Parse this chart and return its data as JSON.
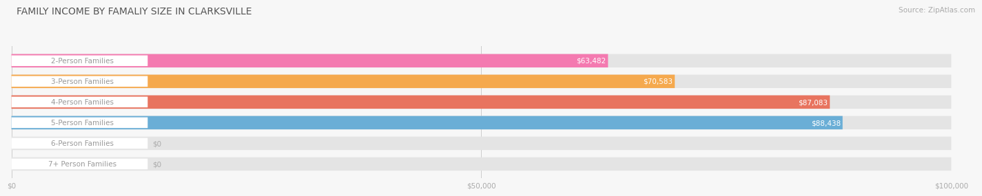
{
  "title": "FAMILY INCOME BY FAMALIY SIZE IN CLARKSVILLE",
  "source": "Source: ZipAtlas.com",
  "categories": [
    "2-Person Families",
    "3-Person Families",
    "4-Person Families",
    "5-Person Families",
    "6-Person Families",
    "7+ Person Families"
  ],
  "values": [
    63482,
    70583,
    87083,
    88438,
    0,
    0
  ],
  "bar_colors": [
    "#f47ab0",
    "#f5a94e",
    "#e8745f",
    "#6aaed6",
    "#c9a8d4",
    "#7ececa"
  ],
  "bar_bg_color": "#e8e8e8",
  "label_text_color": "#999999",
  "value_text_color": "#ffffff",
  "xlim": [
    0,
    100000
  ],
  "xticks": [
    0,
    50000,
    100000
  ],
  "xtick_labels": [
    "$0",
    "$50,000",
    "$100,000"
  ],
  "background_color": "#f7f7f7",
  "title_fontsize": 10,
  "source_fontsize": 7.5,
  "label_fontsize": 7.5,
  "value_fontsize": 7.5,
  "bar_height": 0.65
}
